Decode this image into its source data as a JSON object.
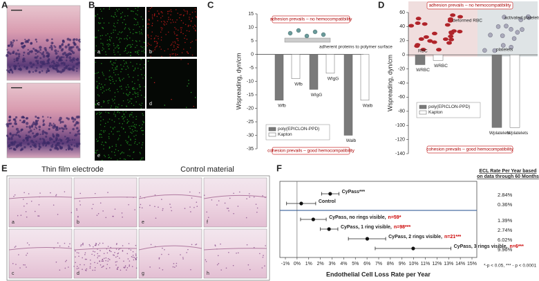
{
  "panel_labels": [
    "A",
    "B",
    "C",
    "D",
    "E",
    "F"
  ],
  "panel_b_labels": [
    "a",
    "b",
    "c",
    "d",
    "e"
  ],
  "panel_e": {
    "titles": [
      "Thin film electrode",
      "Control material"
    ],
    "labels": [
      "a",
      "b",
      "c",
      "d",
      "e",
      "f",
      "g",
      "h"
    ]
  },
  "chart_data": [
    {
      "type": "bar",
      "y_label": "Wspreading, dyn/cm",
      "categories": [
        "Wfb",
        "WIgG",
        "Walb"
      ],
      "series": [
        {
          "name": "poly(EPICLON-PPD)",
          "color": "#7a7a7a",
          "values": [
            -17,
            -13,
            -30
          ]
        },
        {
          "name": "Kapton",
          "color": "#ffffff",
          "values": [
            -9,
            -7,
            -17
          ]
        }
      ],
      "ylim": [
        -35,
        15
      ],
      "yticks": [
        15,
        10,
        5,
        0,
        -5,
        -10,
        -15,
        -20,
        -25,
        -30,
        -35
      ],
      "annotations": [
        "adhesion prevails – no hemocompatibility",
        "adherent proteins to polymer surface",
        "cohesion prevails – good hemocompatibility"
      ]
    },
    {
      "type": "bar",
      "y_label": "Wspreading, dyn/cm",
      "categories": [
        "WRBC",
        "Wplatelets"
      ],
      "series": [
        {
          "name": "poly(EPICLON-PPD)",
          "color": "#7a7a7a",
          "values": [
            -14,
            -103
          ]
        },
        {
          "name": "Kapton",
          "color": "#ffffff",
          "values": [
            -8,
            -103
          ]
        }
      ],
      "ylim": [
        -140,
        60
      ],
      "yticks": [
        60,
        40,
        20,
        0,
        -20,
        -40,
        -60,
        -80,
        -100,
        -120,
        -140
      ],
      "annotations": [
        "adhesion prevails – no hemocompatibility",
        "deformed RBC",
        "RBC",
        "activated platelets",
        "platelets",
        "cohesion prevails – good hemocompatibility"
      ]
    },
    {
      "type": "forest",
      "title": "ECL Rate Per Year based on data through 60 Months",
      "x_label": "Endothelial Cell Loss Rate per Year",
      "categories": [
        "CyPass***",
        "Control",
        "CyPass, no rings visible,",
        "CyPass, 1 ring visible,",
        "CyPass, 2 rings visible,",
        "CyPass, 3 rings visible,"
      ],
      "n_labels": [
        null,
        null,
        "n=59*",
        "n=98***",
        "n=21***",
        "n=6***"
      ],
      "values": [
        2.84,
        0.36,
        1.39,
        2.74,
        6.02,
        9.96
      ],
      "value_labels": [
        "2.84%",
        "0.36%",
        "1.39%",
        "2.74%",
        "6.02%",
        "9.96%"
      ],
      "ci_low": [
        2.1,
        -0.9,
        0.3,
        2.0,
        4.4,
        6.7
      ],
      "ci_high": [
        3.6,
        1.6,
        2.5,
        3.5,
        7.6,
        13.2
      ],
      "xlim": [
        -1,
        15
      ],
      "xticks": [
        {
          "value": -1,
          "label": "-1%"
        },
        {
          "value": 0,
          "label": "0%"
        },
        {
          "value": 1,
          "label": "1%"
        },
        {
          "value": 2,
          "label": "2%"
        },
        {
          "value": 3,
          "label": "3%"
        },
        {
          "value": 4,
          "label": "4%"
        },
        {
          "value": 5,
          "label": "5%"
        },
        {
          "value": 6,
          "label": "6%"
        },
        {
          "value": 7,
          "label": "7%"
        },
        {
          "value": 8,
          "label": "8%"
        },
        {
          "value": 9,
          "label": "9%"
        },
        {
          "value": 10,
          "label": "10%"
        },
        {
          "value": 11,
          "label": "11%"
        },
        {
          "value": 12,
          "label": "12%"
        },
        {
          "value": 13,
          "label": "13%"
        },
        {
          "value": 14,
          "label": "14%"
        },
        {
          "value": 15,
          "label": "15%"
        }
      ],
      "footnote": "*-p < 0.05, *** - p < 0.0001"
    }
  ]
}
